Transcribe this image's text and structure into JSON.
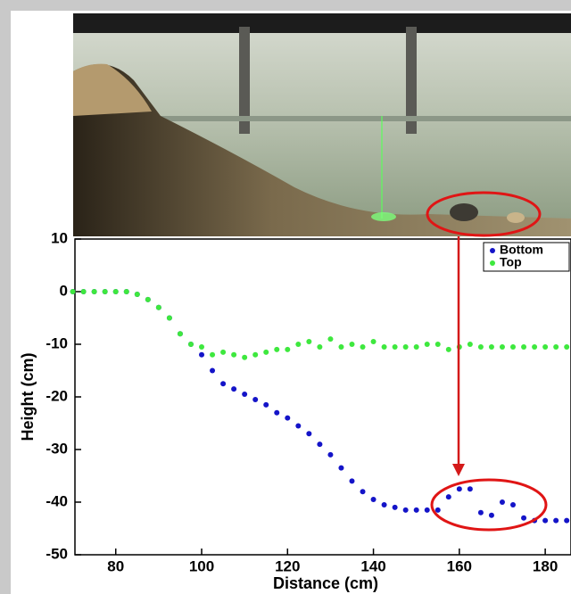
{
  "chart_data": {
    "type": "scatter",
    "x_label": "Distance (cm)",
    "y_label": "Height (cm)",
    "x": [
      70,
      72.5,
      75,
      77.5,
      80,
      82.5,
      85,
      87.5,
      90,
      92.5,
      95,
      97.5,
      100,
      102.5,
      105,
      107.5,
      110,
      112.5,
      115,
      117.5,
      120,
      122.5,
      125,
      127.5,
      130,
      132.5,
      135,
      137.5,
      140,
      142.5,
      145,
      147.5,
      150,
      152.5,
      155,
      157.5,
      160,
      162.5,
      165,
      167.5,
      170,
      172.5,
      175,
      177.5,
      180,
      182.5,
      185
    ],
    "series": [
      {
        "name": "Bottom",
        "color": "#1414c8",
        "values": [
          0,
          0,
          0,
          0,
          0,
          0,
          -0.5,
          -1.5,
          -3,
          -5,
          -8,
          -10,
          -12,
          -15,
          -17.5,
          -18.5,
          -19.5,
          -20.5,
          -21.5,
          -23,
          -24,
          -25.5,
          -27,
          -29,
          -31,
          -33.5,
          -36,
          -38,
          -39.5,
          -40.5,
          -41,
          -41.5,
          -41.5,
          -41.5,
          -41.5,
          -39,
          -37.5,
          -37.5,
          -42,
          -42.5,
          -40,
          -40.5,
          -43,
          -43.5,
          -43.5,
          -43.5,
          -43.5
        ]
      },
      {
        "name": "Top",
        "color": "#3ee83e",
        "values": [
          0,
          0,
          0,
          0,
          0,
          0,
          -0.5,
          -1.5,
          -3,
          -5,
          -8,
          -10,
          -10.5,
          -12,
          -11.5,
          -12,
          -12.5,
          -12,
          -11.5,
          -11,
          -11,
          -10,
          -9.5,
          -10.5,
          -9,
          -10.5,
          -10,
          -10.5,
          -9.5,
          -10.5,
          -10.5,
          -10.5,
          -10.5,
          -10,
          -10,
          -11,
          -10.5,
          -10,
          -10.5,
          -10.5,
          -10.5,
          -10.5,
          -10.5,
          -10.5,
          -10.5,
          -10.5,
          -10.5
        ]
      }
    ],
    "xlim": [
      70.5,
      186
    ],
    "ylim": [
      -50,
      10
    ],
    "xticks": [
      80,
      100,
      120,
      140,
      160,
      180
    ],
    "yticks": [
      -50,
      -40,
      -30,
      -20,
      -10,
      0,
      10
    ],
    "legend": "upper right"
  }
}
